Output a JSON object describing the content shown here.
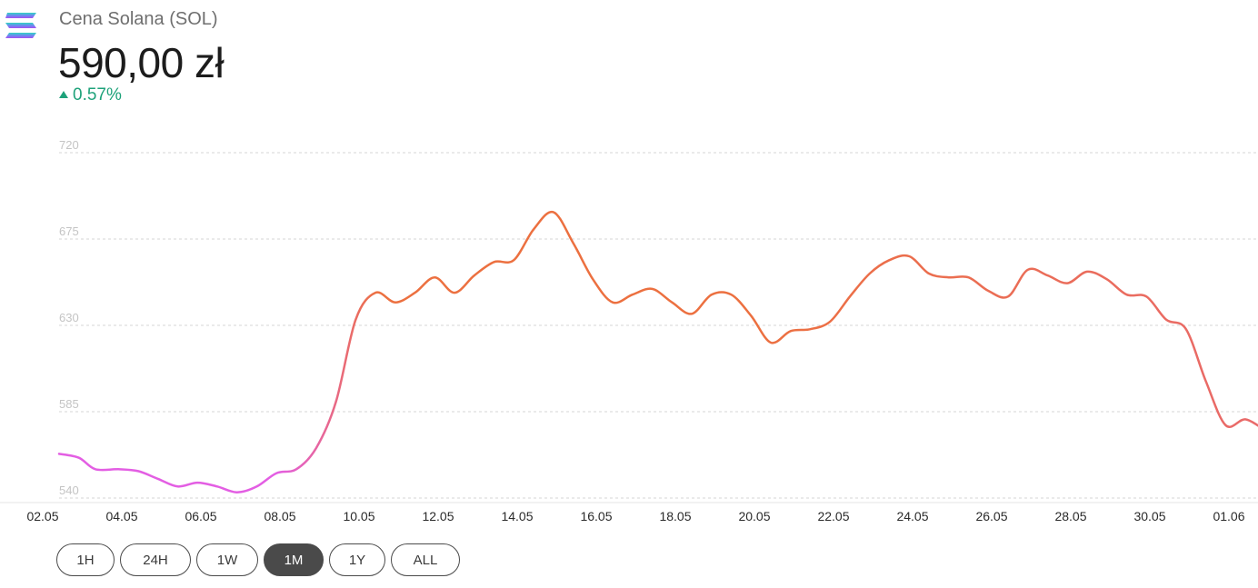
{
  "header": {
    "logo_icon": "solana-logo-icon",
    "coin_name": "Cena Solana (SOL)",
    "price": "590,00 zł",
    "change": "0.57%",
    "change_direction_icon": "triangle-up-icon",
    "change_color": "#1ea27a"
  },
  "chart_data": {
    "type": "line",
    "title": "",
    "xlabel": "",
    "ylabel": "",
    "ylim": [
      540,
      720
    ],
    "yticks": [
      "720",
      "675",
      "630",
      "585",
      "540"
    ],
    "x_tick_labels": [
      "02.05",
      "04.05",
      "06.05",
      "08.05",
      "10.05",
      "12.05",
      "14.05",
      "16.05",
      "18.05",
      "20.05",
      "22.05",
      "24.05",
      "26.05",
      "28.05",
      "30.05",
      "01.06"
    ],
    "grid": "horizontal-dashed",
    "gradient_colors": [
      "#e35ee3",
      "#ec7040",
      "#e96a6a"
    ],
    "series": [
      {
        "points": [
          [
            "02.05 00:00",
            563
          ],
          [
            "02.05 12:00",
            561
          ],
          [
            "02.05 22:00",
            555
          ],
          [
            "03.05 12:00",
            555
          ],
          [
            "04.05 00:00",
            554
          ],
          [
            "04.05 12:00",
            550
          ],
          [
            "05.05 00:00",
            546
          ],
          [
            "05.05 12:00",
            548
          ],
          [
            "06.05 00:00",
            546
          ],
          [
            "06.05 12:00",
            543
          ],
          [
            "07.05 00:00",
            546
          ],
          [
            "07.05 12:00",
            553
          ],
          [
            "08.05 00:00",
            555
          ],
          [
            "08.05 12:00",
            566
          ],
          [
            "09.05 00:00",
            590
          ],
          [
            "09.05 12:00",
            633
          ],
          [
            "10.05 00:00",
            647
          ],
          [
            "10.05 12:00",
            642
          ],
          [
            "11.05 00:00",
            647
          ],
          [
            "11.05 12:00",
            655
          ],
          [
            "12.05 00:00",
            647
          ],
          [
            "12.05 12:00",
            656
          ],
          [
            "13.05 00:00",
            663
          ],
          [
            "13.05 12:00",
            664
          ],
          [
            "14.05 00:00",
            680
          ],
          [
            "14.05 12:00",
            689
          ],
          [
            "15.05 00:00",
            673
          ],
          [
            "15.05 12:00",
            654
          ],
          [
            "16.05 00:00",
            642
          ],
          [
            "16.05 12:00",
            646
          ],
          [
            "17.05 00:00",
            649
          ],
          [
            "17.05 12:00",
            642
          ],
          [
            "18.05 00:00",
            636
          ],
          [
            "18.05 12:00",
            646
          ],
          [
            "19.05 00:00",
            646
          ],
          [
            "19.05 12:00",
            635
          ],
          [
            "20.05 00:00",
            621
          ],
          [
            "20.05 12:00",
            627
          ],
          [
            "21.05 00:00",
            628
          ],
          [
            "21.05 12:00",
            632
          ],
          [
            "22.05 00:00",
            645
          ],
          [
            "22.05 12:00",
            657
          ],
          [
            "23.05 00:00",
            664
          ],
          [
            "23.05 12:00",
            666
          ],
          [
            "24.05 00:00",
            657
          ],
          [
            "24.05 12:00",
            655
          ],
          [
            "25.05 00:00",
            655
          ],
          [
            "25.05 12:00",
            648
          ],
          [
            "26.05 00:00",
            645
          ],
          [
            "26.05 12:00",
            659
          ],
          [
            "27.05 00:00",
            656
          ],
          [
            "27.05 12:00",
            652
          ],
          [
            "28.05 00:00",
            658
          ],
          [
            "28.05 12:00",
            654
          ],
          [
            "29.05 00:00",
            646
          ],
          [
            "29.05 12:00",
            645
          ],
          [
            "30.05 00:00",
            633
          ],
          [
            "30.05 12:00",
            628
          ],
          [
            "31.05 00:00",
            601
          ],
          [
            "31.05 12:00",
            578
          ],
          [
            "01.06 00:00",
            581
          ],
          [
            "01.06 12:00",
            576
          ],
          [
            "02.06 00:00",
            576
          ]
        ]
      }
    ]
  },
  "ranges": {
    "active": "1M",
    "buttons": [
      "1H",
      "24H",
      "1W",
      "1M",
      "1Y",
      "ALL"
    ]
  }
}
